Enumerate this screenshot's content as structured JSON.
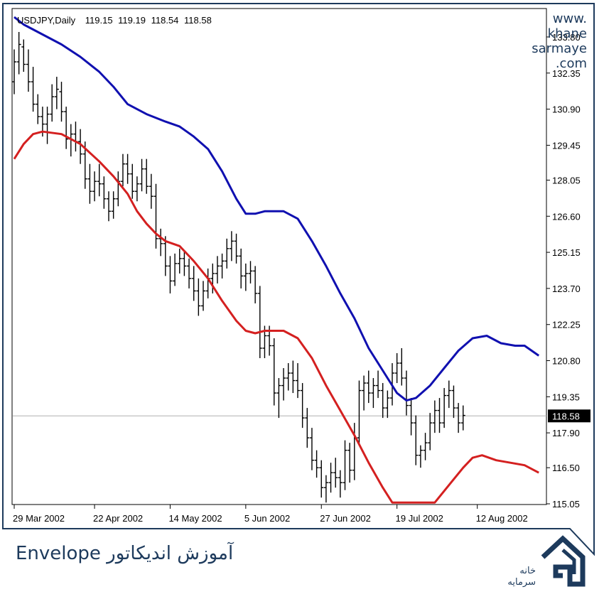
{
  "watermark": {
    "line1": "www.",
    "line2": "khane",
    "line3": "sarmaye",
    "line4": ".com"
  },
  "caption": "آموزش اندیکاتور Envelope",
  "brand": {
    "line1": "خانه",
    "line2": "سرمایه"
  },
  "colors": {
    "upper": "#1010b0",
    "lower": "#d42020",
    "bars": "#000000",
    "frame": "#1d3a5c",
    "price_line": "#b0b0b0"
  },
  "chart_data": {
    "type": "line",
    "header": {
      "symbol": "USDJPY,Daily",
      "open": "119.15",
      "high": "119.19",
      "low": "118.54",
      "close": "118.58"
    },
    "current_price_label": "118.58",
    "current_price": 118.58,
    "y_ticks": [
      "133.80",
      "132.35",
      "130.90",
      "129.45",
      "128.05",
      "126.60",
      "125.15",
      "123.70",
      "122.25",
      "120.80",
      "119.35",
      "117.90",
      "116.50",
      "115.05"
    ],
    "ylim": [
      115.05,
      133.8
    ],
    "x_ticks": [
      {
        "label": "29 Mar 2002",
        "day": 0
      },
      {
        "label": "22 Apr 2002",
        "day": 17
      },
      {
        "label": "14 May 2002",
        "day": 33
      },
      {
        "label": "5 Jun 2002",
        "day": 49
      },
      {
        "label": "27 Jun 2002",
        "day": 65
      },
      {
        "label": "19 Jul 2002",
        "day": 81
      },
      {
        "label": "12 Aug 2002",
        "day": 98
      }
    ],
    "series": [
      {
        "key": "upper",
        "points": [
          [
            0,
            134.6
          ],
          [
            2,
            134.3
          ],
          [
            6,
            133.9
          ],
          [
            10,
            133.5
          ],
          [
            14,
            133.0
          ],
          [
            18,
            132.4
          ],
          [
            21,
            131.8
          ],
          [
            24,
            131.1
          ],
          [
            28,
            130.7
          ],
          [
            32,
            130.4
          ],
          [
            35,
            130.2
          ],
          [
            38,
            129.8
          ],
          [
            41,
            129.3
          ],
          [
            44,
            128.4
          ],
          [
            47,
            127.3
          ],
          [
            49,
            126.7
          ],
          [
            51,
            126.7
          ],
          [
            53,
            126.8
          ],
          [
            57,
            126.8
          ],
          [
            60,
            126.5
          ],
          [
            63,
            125.6
          ],
          [
            66,
            124.6
          ],
          [
            69,
            123.5
          ],
          [
            72,
            122.5
          ],
          [
            75,
            121.3
          ],
          [
            78,
            120.4
          ],
          [
            81,
            119.5
          ],
          [
            83,
            119.2
          ],
          [
            85,
            119.3
          ],
          [
            88,
            119.8
          ],
          [
            91,
            120.5
          ],
          [
            94,
            121.2
          ],
          [
            97,
            121.7
          ],
          [
            100,
            121.8
          ],
          [
            103,
            121.5
          ],
          [
            106,
            121.4
          ],
          [
            108,
            121.4
          ],
          [
            111,
            121.0
          ]
        ]
      },
      {
        "key": "lower",
        "points": [
          [
            0,
            128.9
          ],
          [
            2,
            129.5
          ],
          [
            4,
            129.9
          ],
          [
            6,
            130.0
          ],
          [
            10,
            129.9
          ],
          [
            14,
            129.5
          ],
          [
            18,
            128.8
          ],
          [
            21,
            128.2
          ],
          [
            24,
            127.5
          ],
          [
            26,
            126.8
          ],
          [
            28,
            126.3
          ],
          [
            30,
            125.9
          ],
          [
            32,
            125.6
          ],
          [
            35,
            125.4
          ],
          [
            38,
            124.8
          ],
          [
            41,
            124.1
          ],
          [
            44,
            123.2
          ],
          [
            47,
            122.4
          ],
          [
            49,
            122.0
          ],
          [
            51,
            121.9
          ],
          [
            53,
            122.0
          ],
          [
            57,
            122.0
          ],
          [
            60,
            121.7
          ],
          [
            63,
            120.9
          ],
          [
            66,
            119.8
          ],
          [
            69,
            118.8
          ],
          [
            72,
            117.8
          ],
          [
            75,
            116.7
          ],
          [
            78,
            115.7
          ],
          [
            80,
            115.1
          ],
          [
            82,
            114.6
          ],
          [
            85,
            114.3
          ],
          [
            87,
            114.6
          ],
          [
            89,
            115.1
          ],
          [
            92,
            115.8
          ],
          [
            95,
            116.5
          ],
          [
            97,
            116.9
          ],
          [
            99,
            117.0
          ],
          [
            102,
            116.8
          ],
          [
            105,
            116.7
          ],
          [
            108,
            116.6
          ],
          [
            111,
            116.3
          ]
        ]
      }
    ],
    "ohlc": [
      [
        0,
        132.0,
        133.3,
        131.5,
        132.8
      ],
      [
        1,
        132.8,
        134.0,
        132.3,
        133.5
      ],
      [
        2,
        133.4,
        133.7,
        132.4,
        132.7
      ],
      [
        3,
        132.7,
        133.3,
        131.6,
        132.0
      ],
      [
        4,
        132.0,
        132.6,
        130.8,
        131.1
      ],
      [
        5,
        131.1,
        131.5,
        130.3,
        130.6
      ],
      [
        6,
        130.6,
        131.0,
        129.8,
        130.3
      ],
      [
        7,
        130.3,
        131.0,
        129.5,
        130.7
      ],
      [
        8,
        130.7,
        131.9,
        130.4,
        131.4
      ],
      [
        9,
        131.4,
        132.2,
        130.9,
        131.7
      ],
      [
        10,
        131.6,
        132.0,
        130.4,
        130.8
      ],
      [
        11,
        130.8,
        131.0,
        129.3,
        129.7
      ],
      [
        12,
        129.7,
        130.3,
        129.0,
        129.9
      ],
      [
        13,
        129.9,
        130.4,
        129.2,
        129.6
      ],
      [
        14,
        129.6,
        130.1,
        128.7,
        129.1
      ],
      [
        15,
        129.1,
        129.6,
        127.7,
        128.1
      ],
      [
        16,
        128.1,
        128.7,
        127.1,
        127.6
      ],
      [
        17,
        127.6,
        128.4,
        127.2,
        128.0
      ],
      [
        18,
        128.0,
        128.7,
        127.4,
        127.9
      ],
      [
        19,
        127.9,
        128.2,
        126.9,
        127.3
      ],
      [
        20,
        127.3,
        127.6,
        126.4,
        126.8
      ],
      [
        21,
        126.8,
        127.6,
        126.5,
        127.3
      ],
      [
        22,
        127.3,
        128.4,
        127.0,
        128.0
      ],
      [
        23,
        128.0,
        129.1,
        127.8,
        128.7
      ],
      [
        24,
        128.7,
        129.1,
        127.9,
        128.3
      ],
      [
        25,
        128.3,
        128.7,
        127.3,
        127.6
      ],
      [
        26,
        127.6,
        128.2,
        127.2,
        127.9
      ],
      [
        27,
        127.9,
        128.9,
        127.6,
        128.5
      ],
      [
        28,
        128.5,
        128.9,
        127.5,
        127.8
      ],
      [
        29,
        127.8,
        128.3,
        126.9,
        127.4
      ],
      [
        30,
        127.4,
        127.9,
        125.3,
        125.7
      ],
      [
        31,
        125.7,
        126.1,
        125.0,
        125.5
      ],
      [
        32,
        125.5,
        125.8,
        124.2,
        124.6
      ],
      [
        33,
        124.6,
        125.0,
        123.5,
        124.0
      ],
      [
        34,
        124.0,
        125.1,
        123.8,
        124.7
      ],
      [
        35,
        124.7,
        125.3,
        124.3,
        124.9
      ],
      [
        36,
        124.9,
        125.2,
        124.2,
        124.6
      ],
      [
        37,
        124.6,
        124.9,
        123.7,
        124.1
      ],
      [
        38,
        124.1,
        124.6,
        123.2,
        123.6
      ],
      [
        39,
        123.6,
        124.1,
        122.6,
        123.0
      ],
      [
        40,
        123.0,
        124.0,
        122.8,
        123.6
      ],
      [
        41,
        123.6,
        124.5,
        123.3,
        124.1
      ],
      [
        42,
        124.1,
        124.7,
        123.5,
        124.3
      ],
      [
        43,
        124.3,
        125.0,
        123.9,
        124.6
      ],
      [
        44,
        124.6,
        125.1,
        124.1,
        124.8
      ],
      [
        45,
        124.8,
        125.7,
        124.5,
        125.3
      ],
      [
        46,
        125.3,
        126.0,
        124.8,
        125.6
      ],
      [
        47,
        125.6,
        125.9,
        124.7,
        125.0
      ],
      [
        48,
        125.0,
        125.3,
        123.7,
        124.2
      ],
      [
        49,
        124.2,
        124.7,
        123.6,
        124.3
      ],
      [
        50,
        124.3,
        124.8,
        123.9,
        124.4
      ],
      [
        51,
        124.4,
        124.6,
        123.1,
        123.5
      ],
      [
        52,
        123.5,
        123.8,
        120.9,
        121.3
      ],
      [
        53,
        121.3,
        122.2,
        120.9,
        121.8
      ],
      [
        54,
        121.8,
        122.2,
        121.0,
        121.4
      ],
      [
        55,
        121.4,
        121.7,
        119.0,
        119.5
      ],
      [
        56,
        119.5,
        120.1,
        118.5,
        119.8
      ],
      [
        57,
        119.8,
        120.5,
        119.2,
        120.1
      ],
      [
        58,
        120.1,
        120.7,
        119.6,
        120.3
      ],
      [
        59,
        120.3,
        120.8,
        119.5,
        120.0
      ],
      [
        60,
        120.0,
        120.7,
        119.3,
        119.6
      ],
      [
        61,
        119.6,
        119.9,
        118.1,
        118.5
      ],
      [
        62,
        118.5,
        118.9,
        117.3,
        117.7
      ],
      [
        63,
        117.7,
        118.1,
        116.4,
        116.8
      ],
      [
        64,
        116.8,
        117.2,
        116.1,
        116.5
      ],
      [
        65,
        116.5,
        116.8,
        115.3,
        115.7
      ],
      [
        66,
        115.7,
        116.2,
        115.1,
        115.9
      ],
      [
        67,
        115.9,
        116.7,
        115.5,
        116.3
      ],
      [
        68,
        116.3,
        116.9,
        115.7,
        116.1
      ],
      [
        69,
        116.1,
        116.4,
        115.3,
        115.9
      ],
      [
        70,
        115.9,
        117.6,
        115.6,
        117.2
      ],
      [
        71,
        117.2,
        117.5,
        115.9,
        116.4
      ],
      [
        72,
        116.4,
        118.3,
        116.0,
        117.7
      ],
      [
        73,
        117.7,
        120.0,
        117.4,
        119.6
      ],
      [
        74,
        119.6,
        120.2,
        118.8,
        119.9
      ],
      [
        75,
        119.9,
        120.4,
        119.1,
        119.5
      ],
      [
        76,
        119.5,
        120.1,
        118.9,
        119.8
      ],
      [
        77,
        119.8,
        120.4,
        119.3,
        119.6
      ],
      [
        78,
        119.6,
        119.9,
        118.5,
        118.9
      ],
      [
        79,
        118.9,
        119.6,
        118.5,
        119.3
      ],
      [
        80,
        119.3,
        120.7,
        119.0,
        120.3
      ],
      [
        81,
        120.3,
        121.1,
        119.9,
        120.7
      ],
      [
        82,
        120.7,
        121.3,
        119.8,
        120.1
      ],
      [
        83,
        120.1,
        120.4,
        118.6,
        119.0
      ],
      [
        84,
        119.0,
        119.3,
        117.8,
        118.3
      ],
      [
        85,
        118.3,
        118.6,
        116.6,
        117.0
      ],
      [
        86,
        117.0,
        117.4,
        116.5,
        117.2
      ],
      [
        87,
        117.2,
        117.9,
        116.8,
        117.5
      ],
      [
        88,
        117.5,
        118.7,
        117.2,
        118.3
      ],
      [
        89,
        118.3,
        119.2,
        117.9,
        118.8
      ],
      [
        90,
        118.8,
        119.3,
        117.9,
        118.3
      ],
      [
        91,
        118.3,
        119.7,
        118.1,
        119.4
      ],
      [
        92,
        119.4,
        120.0,
        118.9,
        119.6
      ],
      [
        93,
        119.6,
        119.8,
        118.5,
        118.9
      ],
      [
        94,
        118.9,
        119.1,
        117.9,
        118.3
      ],
      [
        95,
        118.3,
        119.0,
        118.0,
        118.6
      ]
    ]
  }
}
